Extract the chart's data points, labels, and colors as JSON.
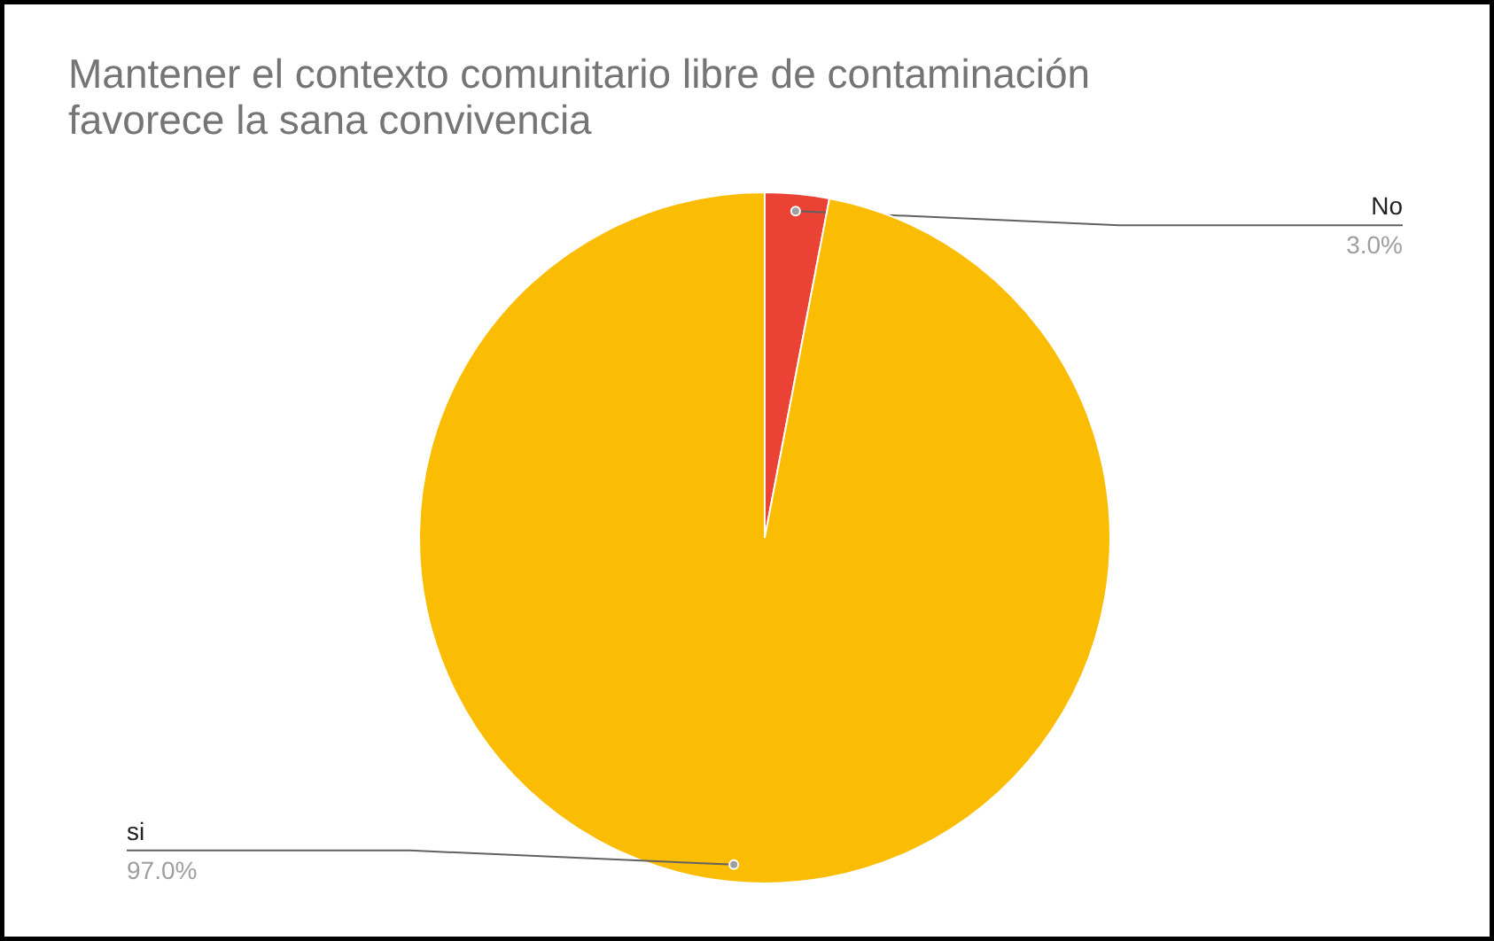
{
  "chart_data": {
    "type": "pie",
    "title": "Mantener el contexto comunitario libre de contaminación favorece la sana convivencia",
    "categories": [
      "No",
      "si"
    ],
    "values": [
      3,
      97
    ],
    "colors": [
      "#ea4335",
      "#fbbc04"
    ],
    "value_labels": [
      "3.0%",
      "97.0%"
    ]
  }
}
